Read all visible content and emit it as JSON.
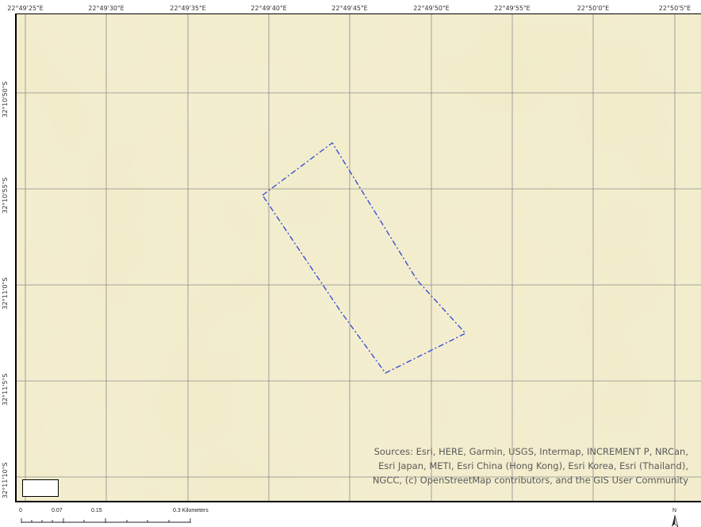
{
  "map": {
    "background_color": "#f1ebc8",
    "grid_color": "#8c8c8c",
    "parcel_color": "#3a4fd6"
  },
  "graticule": {
    "longitude_labels": [
      "22°49'25\"E",
      "22°49'30\"E",
      "22°49'35\"E",
      "22°49'40\"E",
      "22°49'45\"E",
      "22°49'50\"E",
      "22°49'55\"E",
      "22°50'0\"E",
      "22°50'5\"E"
    ],
    "latitude_labels": [
      "32°10'50\"S",
      "32°10'55\"S",
      "32°11'0\"S",
      "32°11'5\"S",
      "32°11'10\"S"
    ]
  },
  "attribution": {
    "text": "Sources: Esri, HERE, Garmin, USGS, Intermap, INCREMENT P, NRCan, Esri Japan, METI, Esri China (Hong Kong), Esri Korea, Esri (Thailand), NGCC, (c) OpenStreetMap contributors, and the GIS User Community"
  },
  "scale_bar": {
    "labels": [
      "0",
      "0.07",
      "0.15",
      "0.3 Kilometers"
    ]
  },
  "north_arrow": {
    "label": "N",
    "icon": "north-arrow-icon"
  }
}
